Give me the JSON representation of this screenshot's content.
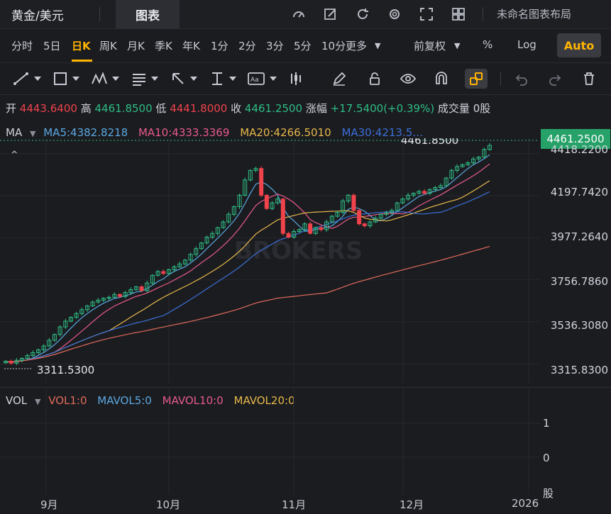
{
  "topbar": {
    "symbol": "黄金/美元",
    "chart_tab": "图表",
    "layout_name": "未命名图表布局",
    "icons": [
      "gauge-icon",
      "edit-icon",
      "refresh-icon",
      "gear-icon",
      "fullscreen-icon",
      "grid-icon"
    ]
  },
  "periods": [
    "分时",
    "5日",
    "日K",
    "周K",
    "月K",
    "季K",
    "年K",
    "1分",
    "2分",
    "3分",
    "5分",
    "10分",
    "更多"
  ],
  "active_period": "日K",
  "adjust": "前复权",
  "percent": "%",
  "log": "Log",
  "auto": "Auto",
  "ohlc": {
    "open_label": "开",
    "open": "4443.6400",
    "high_label": "高",
    "high": "4461.8500",
    "low_label": "低",
    "low": "4441.8000",
    "close_label": "收",
    "close": "4461.2500",
    "change_label": "涨幅",
    "change": "+17.5400(+0.39%)",
    "volume_label": "成交量",
    "volume": "0股"
  },
  "ma": {
    "label": "MA",
    "ma5": "MA5:4382.8218",
    "ma10": "MA10:4333.3369",
    "ma20": "MA20:4266.5010",
    "ma30": "MA30:4213.5…"
  },
  "colors": {
    "up": "#2ebd85",
    "down": "#f0434b",
    "ma5": "#5aa8e0",
    "ma10": "#e85a8a",
    "ma20": "#e6b84a",
    "ma30": "#3a6fd6",
    "ma60": "#e06b5a",
    "accent": "#ffb400"
  },
  "price_axis": [
    "4418.2200",
    "4197.7420",
    "3977.2640",
    "3756.7860",
    "3536.3080",
    "3315.8300"
  ],
  "current_price": "4461.2500",
  "high_marker": "4461.8500",
  "low_marker": "3311.5300",
  "watermark": "BROKERS",
  "vol": {
    "label": "VOL",
    "vol1": "VOL1:0",
    "mavol5": "MAVOL5:0",
    "mavol10": "MAVOL10:0",
    "mavol20": "MAVOL20:0",
    "axis": [
      "1",
      "0",
      "股"
    ]
  },
  "dates": [
    "9月",
    "10月",
    "11月",
    "12月",
    "2026"
  ],
  "chart_data": {
    "type": "candlestick",
    "y_range": [
      3280,
      4480
    ],
    "ticks": [
      4418.22,
      4197.742,
      3977.264,
      3756.786,
      3536.308,
      3315.83
    ],
    "closes": [
      3330,
      3320,
      3335,
      3345,
      3360,
      3375,
      3390,
      3410,
      3440,
      3470,
      3510,
      3540,
      3560,
      3580,
      3600,
      3620,
      3640,
      3650,
      3660,
      3665,
      3680,
      3670,
      3690,
      3705,
      3720,
      3700,
      3740,
      3780,
      3800,
      3790,
      3810,
      3825,
      3840,
      3860,
      3890,
      3920,
      3950,
      3980,
      4000,
      4030,
      4060,
      4100,
      4140,
      4200,
      4280,
      4330,
      4340,
      4200,
      4130,
      4160,
      4180,
      4000,
      3980,
      4010,
      4020,
      4050,
      4000,
      4030,
      4020,
      4060,
      4090,
      4110,
      4170,
      4200,
      4120,
      4050,
      4040,
      4060,
      4080,
      4100,
      4110,
      4120,
      4160,
      4180,
      4200,
      4210,
      4220,
      4210,
      4230,
      4240,
      4250,
      4290,
      4330,
      4350,
      4360,
      4370,
      4390,
      4400,
      4440,
      4461
    ]
  }
}
